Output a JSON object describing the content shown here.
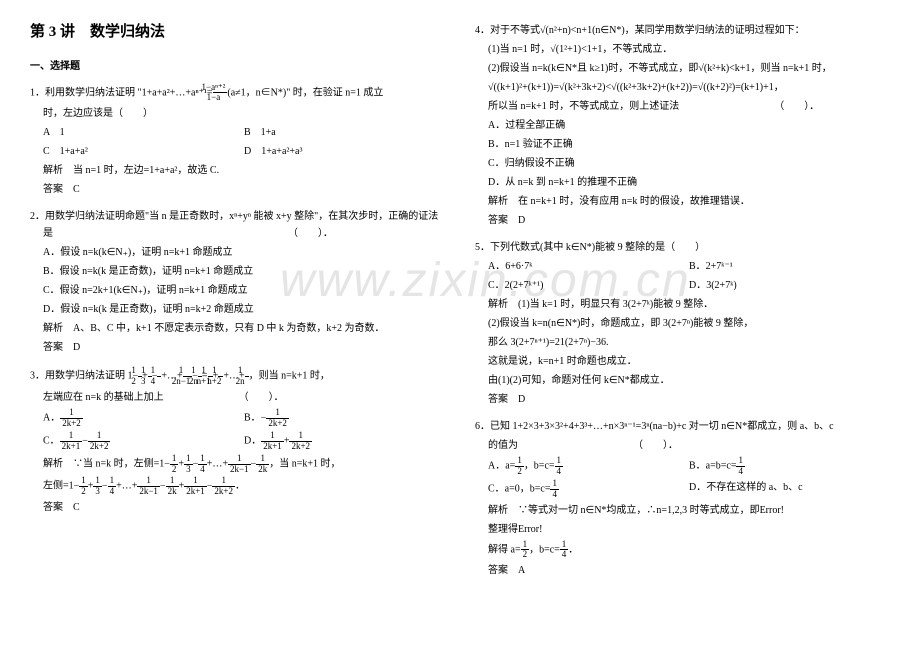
{
  "title": "第 3 讲　数学归纳法",
  "section1": "一、选择题",
  "q1": {
    "num": "1．",
    "stem_a": "利用数学归纳法证明 \"1+a+a²+…+aⁿ⁺¹=",
    "frac_num": "1−aⁿ⁺²",
    "frac_den": "1−a",
    "stem_b": "(a≠1，n∈N*)\" 时，在验证 n=1 成立",
    "line2": "时，左边应该是（　　）",
    "optA": "A　1",
    "optB": "B　1+a",
    "optC": "C　1+a+a²",
    "optD": "D　1+a+a²+a³",
    "analysis": "解析　当 n=1 时，左边=1+a+a²，故选 C.",
    "answer": "答案　C"
  },
  "q2": {
    "num": "2．",
    "stem": "用数学归纳法证明命题\"当 n 是正奇数时，xⁿ+yⁿ 能被 x+y 整除\"，在其次步时，正确的证法是　　　　　　　　　　　　　　　　　　　　　　　　（　　）．",
    "optA": "A．假设 n=k(k∈N₊)，证明 n=k+1 命题成立",
    "optB": "B．假设 n=k(k 是正奇数)，证明 n=k+1 命题成立",
    "optC": "C．假设 n=2k+1(k∈N₊)，证明 n=k+1 命题成立",
    "optD": "D．假设 n=k(k 是正奇数)，证明 n=k+2 命题成立",
    "analysis": "解析　A、B、C 中，k+1 不愿定表示奇数，只有 D 中 k 为奇数，k+2 为奇数．",
    "answer": "答案　D"
  },
  "q3": {
    "num": "3．",
    "stem": "用数学归纳法证明 1−",
    "line2": "左端应在 n=k 的基础上加上　　　　　　　　（　　）．",
    "optA_pre": "A．",
    "optB_pre": "B．−",
    "optC_pre": "C．",
    "optD_pre": "D．",
    "analysis_pre": "解析　∵当 n=k 时，左侧=1−",
    "analysis_mid": "，当 n=k+1 时，",
    "analysis2_pre": "左侧=1−",
    "answer": "答案　C"
  },
  "q4": {
    "num": "4．",
    "stem": "对于不等式√(n²+n)<n+1(n∈N*)，某同学用数学归纳法的证明过程如下：",
    "l1": "(1)当 n=1 时，√(1²+1)<1+1，不等式成立．",
    "l2": "(2)假设当 n=k(k∈N*且 k≥1)时，不等式成立，即√(k²+k)<k+1，则当 n=k+1 时，",
    "l3": "√((k+1)²+(k+1))=√(k²+3k+2)<√((k²+3k+2)+(k+2))=√((k+2)²)=(k+1)+1，",
    "l4": "所以当 n=k+1 时，不等式成立，则上述证法　　　　　　　　　　（　　）．",
    "optA": "A．过程全部正确",
    "optB": "B．n=1 验证不正确",
    "optC": "C．归纳假设不正确",
    "optD": "D．从 n=k 到 n=k+1 的推理不正确",
    "analysis": "解析　在 n=k+1 时，没有应用 n=k 时的假设，故推理错误．",
    "answer": "答案　D"
  },
  "q5": {
    "num": "5．",
    "stem": "下列代数式(其中 k∈N*)能被 9 整除的是（　　）",
    "optA": "A．6+6·7ᵏ",
    "optB": "B．2+7ᵏ⁻¹",
    "optC": "C．2(2+7ᵏ⁺¹)",
    "optD": "D．3(2+7ᵏ)",
    "a1": "解析　(1)当 k=1 时，明显只有 3(2+7ᵏ)能被 9 整除．",
    "a2": "(2)假设当 k=n(n∈N*)时，命题成立，即 3(2+7ⁿ)能被 9 整除，",
    "a3": "那么 3(2+7ⁿ⁺¹)=21(2+7ⁿ)−36.",
    "a4": "这就是说，k=n+1 时命题也成立．",
    "a5": "由(1)(2)可知，命题对任何 k∈N*都成立．",
    "answer": "答案　D"
  },
  "q6": {
    "num": "6．",
    "stem": "已知 1+2×3+3×3²+4+3³+…+n×3ⁿ⁻¹=3ⁿ(na−b)+c 对一切 n∈N*都成立，则 a、b、c",
    "line2": "的值为　　　　　　　　　　　　（　　）．",
    "optA_pre": "A．a=",
    "optA_mid": "，b=c=",
    "optB_pre": "B．a=b=c=",
    "optC_pre": "C．a=0，b=c=",
    "optD": "D．不存在这样的 a、b、c",
    "a1": "解析　∵等式对一切 n∈N*均成立，∴n=1,2,3 时等式成立，即Error!",
    "a2": "整理得Error!",
    "a3_pre": "解得 a=",
    "a3_mid": "，b=c=",
    "answer": "答案　A"
  },
  "frac12": {
    "n": "1",
    "d": "2"
  },
  "frac13": {
    "n": "1",
    "d": "3"
  },
  "frac14": {
    "n": "1",
    "d": "4"
  },
  "frac_2n1": {
    "n": "1",
    "d": "2n−1"
  },
  "frac_2n": {
    "n": "1",
    "d": "2n"
  },
  "frac_n1": {
    "n": "1",
    "d": "n+1"
  },
  "frac_n2": {
    "n": "1",
    "d": "n+2"
  },
  "frac_2k2": {
    "n": "1",
    "d": "2k+2"
  },
  "frac_2k1": {
    "n": "1",
    "d": "2k+1"
  },
  "frac_2k_1": {
    "n": "1",
    "d": "2k−1"
  },
  "frac_2k": {
    "n": "1",
    "d": "2k"
  },
  "plus": "+",
  "minus": "−",
  "dots": "+…+",
  "eq_mid": "，则当 n=k+1 时，",
  "period": "．"
}
